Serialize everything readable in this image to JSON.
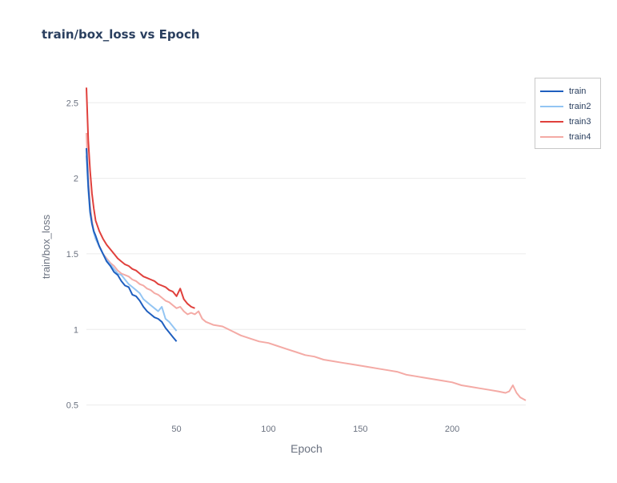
{
  "chart_data": {
    "type": "line",
    "title": "train/box_loss vs Epoch",
    "xlabel": "Epoch",
    "ylabel": "train/box_loss",
    "xlim": [
      1,
      240
    ],
    "ylim": [
      0.45,
      2.65
    ],
    "xticks": [
      50,
      100,
      150,
      200
    ],
    "yticks": [
      0.5,
      1,
      1.5,
      2,
      2.5
    ],
    "xtick_labels": [
      "50",
      "100",
      "150",
      "200"
    ],
    "ytick_labels": [
      "0.5",
      "1",
      "1.5",
      "2",
      "2.5"
    ],
    "grid": true,
    "legend_position": "top-right",
    "series": [
      {
        "name": "train",
        "color": "#1f5fbf",
        "x": [
          1,
          2,
          3,
          4,
          5,
          6,
          8,
          10,
          12,
          14,
          16,
          18,
          20,
          22,
          24,
          26,
          28,
          30,
          32,
          34,
          36,
          38,
          40,
          42,
          44,
          46,
          48,
          50
        ],
        "y": [
          2.2,
          1.95,
          1.78,
          1.7,
          1.65,
          1.62,
          1.55,
          1.5,
          1.45,
          1.42,
          1.38,
          1.36,
          1.32,
          1.29,
          1.28,
          1.23,
          1.22,
          1.19,
          1.15,
          1.12,
          1.1,
          1.08,
          1.07,
          1.05,
          1.01,
          0.98,
          0.95,
          0.92
        ]
      },
      {
        "name": "train2",
        "color": "#93c5f3",
        "x": [
          1,
          2,
          3,
          4,
          5,
          6,
          8,
          10,
          12,
          14,
          16,
          18,
          20,
          22,
          24,
          26,
          28,
          30,
          32,
          34,
          36,
          38,
          40,
          42,
          44,
          46,
          48,
          50
        ],
        "y": [
          2.15,
          1.92,
          1.77,
          1.7,
          1.64,
          1.6,
          1.55,
          1.5,
          1.46,
          1.43,
          1.4,
          1.37,
          1.36,
          1.33,
          1.3,
          1.28,
          1.26,
          1.24,
          1.2,
          1.18,
          1.16,
          1.14,
          1.12,
          1.15,
          1.07,
          1.05,
          1.02,
          0.99
        ]
      },
      {
        "name": "train3",
        "color": "#e0403c",
        "x": [
          1,
          2,
          3,
          4,
          5,
          6,
          8,
          10,
          12,
          14,
          16,
          18,
          20,
          22,
          24,
          26,
          28,
          30,
          32,
          34,
          36,
          38,
          40,
          42,
          44,
          46,
          48,
          50,
          52,
          54,
          56,
          58,
          60
        ],
        "y": [
          2.6,
          2.25,
          2.05,
          1.9,
          1.8,
          1.72,
          1.65,
          1.6,
          1.56,
          1.53,
          1.5,
          1.47,
          1.45,
          1.43,
          1.42,
          1.4,
          1.39,
          1.37,
          1.35,
          1.34,
          1.33,
          1.32,
          1.3,
          1.29,
          1.28,
          1.26,
          1.25,
          1.22,
          1.27,
          1.2,
          1.17,
          1.15,
          1.14
        ]
      },
      {
        "name": "train4",
        "color": "#f4aaa5",
        "x": [
          1,
          2,
          3,
          4,
          5,
          6,
          8,
          10,
          12,
          14,
          16,
          18,
          20,
          22,
          24,
          26,
          28,
          30,
          32,
          34,
          36,
          38,
          40,
          42,
          44,
          46,
          48,
          50,
          52,
          54,
          56,
          58,
          60,
          62,
          64,
          66,
          68,
          70,
          75,
          80,
          85,
          90,
          95,
          100,
          105,
          110,
          115,
          120,
          125,
          130,
          135,
          140,
          145,
          150,
          155,
          160,
          165,
          170,
          175,
          180,
          185,
          190,
          195,
          200,
          205,
          210,
          215,
          220,
          225,
          229,
          231,
          233,
          235,
          237,
          240
        ],
        "y": [
          2.3,
          2.0,
          1.82,
          1.72,
          1.65,
          1.6,
          1.55,
          1.5,
          1.47,
          1.44,
          1.42,
          1.39,
          1.37,
          1.36,
          1.35,
          1.33,
          1.32,
          1.3,
          1.29,
          1.27,
          1.26,
          1.24,
          1.23,
          1.21,
          1.19,
          1.18,
          1.16,
          1.14,
          1.15,
          1.12,
          1.1,
          1.11,
          1.1,
          1.12,
          1.07,
          1.05,
          1.04,
          1.03,
          1.02,
          0.99,
          0.96,
          0.94,
          0.92,
          0.91,
          0.89,
          0.87,
          0.85,
          0.83,
          0.82,
          0.8,
          0.79,
          0.78,
          0.77,
          0.76,
          0.75,
          0.74,
          0.73,
          0.72,
          0.7,
          0.69,
          0.68,
          0.67,
          0.66,
          0.65,
          0.63,
          0.62,
          0.61,
          0.6,
          0.59,
          0.58,
          0.59,
          0.63,
          0.58,
          0.55,
          0.53
        ]
      }
    ]
  }
}
